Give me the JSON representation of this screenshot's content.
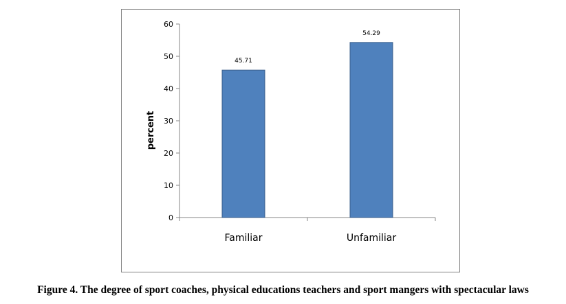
{
  "chart_data": {
    "type": "bar",
    "categories": [
      "Familiar",
      "Unfamiliar"
    ],
    "values": [
      45.71,
      54.29
    ],
    "data_labels": [
      "45.71",
      "54.29"
    ],
    "xlabel": "",
    "ylabel": "percent",
    "ylim": [
      0,
      60
    ],
    "yticks": [
      0,
      10,
      20,
      30,
      40,
      50,
      60
    ],
    "grid": false,
    "legend": "none",
    "bar_color": "#4f81bd",
    "bar_edge_color": "#385d8a"
  },
  "caption": "Figure 4. The degree of sport coaches, physical educations teachers and sport mangers with spectacular laws"
}
